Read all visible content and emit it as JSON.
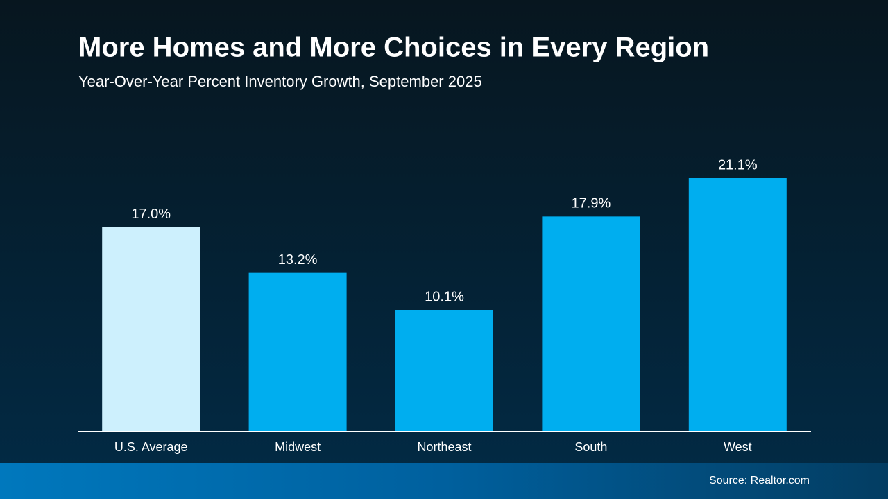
{
  "chart_data": {
    "type": "bar",
    "title": "More Homes and More Choices in Every Region",
    "subtitle": "Year-Over-Year Percent Inventory Growth, September 2025",
    "categories": [
      "U.S. Average",
      "Midwest",
      "Northeast",
      "South",
      "West"
    ],
    "values": [
      17.0,
      13.2,
      10.1,
      17.9,
      21.1
    ],
    "value_labels": [
      "17.0%",
      "13.2%",
      "10.1%",
      "17.9%",
      "21.1%"
    ],
    "colors": [
      "#cdf0fd",
      "#00aeef",
      "#00aeef",
      "#00aeef",
      "#00aeef"
    ],
    "source": "Source: Realtor.com"
  }
}
